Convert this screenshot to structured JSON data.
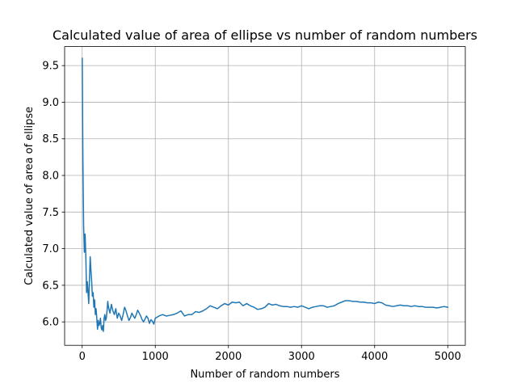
{
  "chart_data": {
    "type": "line",
    "title": "Calculated value of area of ellipse vs number of random numbers",
    "xlabel": "Number of random numbers",
    "ylabel": "Calculated  value of area of ellipse",
    "xlim": [
      -240,
      5240
    ],
    "ylim": [
      5.68,
      9.76
    ],
    "xticks": [
      0,
      1000,
      2000,
      3000,
      4000,
      5000
    ],
    "xtick_labels": [
      "0",
      "1000",
      "2000",
      "3000",
      "4000",
      "5000"
    ],
    "yticks": [
      6.0,
      6.5,
      7.0,
      7.5,
      8.0,
      8.5,
      9.0,
      9.5
    ],
    "ytick_labels": [
      "6.0",
      "6.5",
      "7.0",
      "7.5",
      "8.0",
      "8.5",
      "9.0",
      "9.5"
    ],
    "grid": true,
    "series": [
      {
        "color": "#1f77b4",
        "x": [
          1,
          10,
          20,
          30,
          40,
          50,
          60,
          70,
          80,
          90,
          100,
          110,
          120,
          130,
          140,
          150,
          160,
          170,
          180,
          190,
          200,
          210,
          220,
          230,
          240,
          250,
          260,
          270,
          280,
          290,
          300,
          310,
          320,
          330,
          340,
          350,
          360,
          380,
          400,
          420,
          440,
          460,
          480,
          500,
          520,
          540,
          560,
          580,
          600,
          620,
          640,
          660,
          680,
          700,
          720,
          740,
          760,
          780,
          800,
          820,
          840,
          860,
          880,
          900,
          920,
          940,
          960,
          980,
          1000,
          1050,
          1100,
          1150,
          1200,
          1250,
          1300,
          1350,
          1400,
          1450,
          1500,
          1550,
          1600,
          1650,
          1700,
          1750,
          1800,
          1850,
          1900,
          1950,
          2000,
          2050,
          2100,
          2150,
          2200,
          2250,
          2300,
          2350,
          2400,
          2450,
          2500,
          2550,
          2600,
          2650,
          2700,
          2750,
          2800,
          2850,
          2900,
          2950,
          3000,
          3050,
          3100,
          3150,
          3200,
          3250,
          3300,
          3350,
          3400,
          3450,
          3500,
          3550,
          3600,
          3650,
          3700,
          3750,
          3800,
          3850,
          3900,
          3950,
          4000,
          4050,
          4100,
          4150,
          4200,
          4250,
          4300,
          4350,
          4400,
          4450,
          4500,
          4550,
          4600,
          4650,
          4700,
          4750,
          4800,
          4850,
          4900,
          4950,
          5000
        ],
        "y": [
          9.6,
          8.2,
          7.3,
          6.95,
          7.2,
          6.9,
          6.4,
          6.55,
          6.4,
          6.25,
          6.6,
          6.89,
          6.7,
          6.55,
          6.35,
          6.4,
          6.2,
          6.3,
          6.1,
          6.18,
          6.05,
          5.9,
          6.02,
          5.95,
          5.98,
          6.05,
          5.92,
          5.89,
          5.95,
          5.87,
          6.05,
          6.1,
          6.02,
          6.05,
          6.15,
          6.28,
          6.2,
          6.12,
          6.24,
          6.15,
          6.1,
          6.18,
          6.05,
          6.12,
          6.08,
          6.02,
          6.1,
          6.2,
          6.15,
          6.08,
          6.02,
          6.06,
          6.12,
          6.08,
          6.05,
          6.1,
          6.16,
          6.12,
          6.08,
          6.03,
          6.0,
          6.04,
          6.08,
          6.05,
          5.98,
          6.03,
          6.01,
          5.97,
          6.05,
          6.08,
          6.1,
          6.08,
          6.09,
          6.1,
          6.12,
          6.15,
          6.08,
          6.1,
          6.1,
          6.14,
          6.13,
          6.15,
          6.18,
          6.22,
          6.2,
          6.18,
          6.22,
          6.25,
          6.23,
          6.27,
          6.26,
          6.27,
          6.22,
          6.25,
          6.22,
          6.2,
          6.17,
          6.18,
          6.2,
          6.25,
          6.23,
          6.24,
          6.22,
          6.21,
          6.21,
          6.2,
          6.21,
          6.2,
          6.22,
          6.2,
          6.18,
          6.2,
          6.21,
          6.22,
          6.22,
          6.2,
          6.21,
          6.22,
          6.25,
          6.27,
          6.29,
          6.29,
          6.28,
          6.28,
          6.27,
          6.27,
          6.26,
          6.26,
          6.25,
          6.27,
          6.26,
          6.23,
          6.22,
          6.21,
          6.22,
          6.23,
          6.22,
          6.22,
          6.21,
          6.22,
          6.21,
          6.21,
          6.2,
          6.2,
          6.2,
          6.19,
          6.2,
          6.21,
          6.2
        ]
      }
    ]
  }
}
